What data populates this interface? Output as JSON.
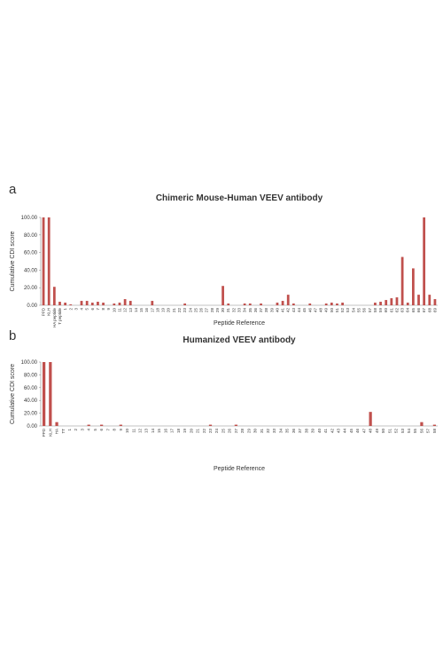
{
  "chart_data": [
    {
      "type": "bar",
      "panel_label": "a",
      "title": "Chimeric Mouse-Human  VEEV antibody",
      "x_label": "Peptide Reference",
      "y_label": "Cumulative CDI score",
      "color": "#c0504d",
      "ylim": [
        0,
        100
      ],
      "yticks": [
        {
          "value": 0,
          "label": "0.00"
        },
        {
          "value": 20,
          "label": "20.00"
        },
        {
          "value": 40,
          "label": "40.00"
        },
        {
          "value": 60,
          "label": "60.00"
        },
        {
          "value": 80,
          "label": "80.00"
        },
        {
          "value": 100,
          "label": "100.00"
        }
      ],
      "categories": [
        "PPD",
        "KLH",
        "HA peptide",
        "T peptide",
        "1",
        "2",
        "3",
        "4",
        "5",
        "6",
        "7",
        "8",
        "9",
        "10",
        "11",
        "12",
        "13",
        "14",
        "15",
        "16",
        "17",
        "18",
        "19",
        "20",
        "21",
        "22",
        "23",
        "24",
        "25",
        "26",
        "27",
        "28",
        "29",
        "30",
        "31",
        "32",
        "33",
        "34",
        "35",
        "36",
        "37",
        "38",
        "39",
        "40",
        "41",
        "42",
        "43",
        "44",
        "45",
        "46",
        "47",
        "48",
        "49",
        "50",
        "51",
        "52",
        "53",
        "54",
        "55",
        "56",
        "57",
        "58",
        "59",
        "60",
        "61",
        "62",
        "63",
        "64",
        "65",
        "66",
        "67",
        "68",
        "69"
      ],
      "values": [
        100,
        100,
        21,
        4,
        3,
        1,
        0,
        5,
        5,
        3,
        4,
        3,
        0,
        2,
        3,
        7,
        5,
        0,
        0,
        0,
        5,
        0,
        0,
        0,
        0,
        0,
        2,
        0,
        0,
        0,
        0,
        0,
        0,
        22,
        2,
        0,
        0,
        2,
        2,
        0,
        2,
        0,
        0,
        3,
        5,
        12,
        2,
        0,
        0,
        2,
        0,
        0,
        2,
        3,
        2,
        3,
        0,
        0,
        0,
        0,
        0,
        3,
        4,
        6,
        8,
        9,
        55,
        3,
        42,
        12,
        100,
        12,
        7
      ]
    },
    {
      "type": "bar",
      "panel_label": "b",
      "title": "Humanized  VEEV antibody",
      "x_label": "Peptide Reference",
      "y_label": "Cumulative CDI score",
      "color": "#c0504d",
      "ylim": [
        0,
        100
      ],
      "yticks": [
        {
          "value": 0,
          "label": "0.00"
        },
        {
          "value": 20,
          "label": "20.00"
        },
        {
          "value": 40,
          "label": "40.00"
        },
        {
          "value": 60,
          "label": "60.00"
        },
        {
          "value": 80,
          "label": "80.00"
        },
        {
          "value": 100,
          "label": "100.00"
        }
      ],
      "categories": [
        "PPD",
        "KLH",
        "HA",
        "TT",
        "1",
        "2",
        "3",
        "4",
        "5",
        "6",
        "7",
        "8",
        "9",
        "10",
        "11",
        "12",
        "13",
        "14",
        "15",
        "16",
        "17",
        "18",
        "19",
        "20",
        "21",
        "22",
        "23",
        "24",
        "25",
        "26",
        "27",
        "28",
        "29",
        "30",
        "31",
        "32",
        "33",
        "34",
        "35",
        "36",
        "37",
        "38",
        "39",
        "40",
        "41",
        "42",
        "43",
        "44",
        "45",
        "46",
        "47",
        "48",
        "49",
        "50",
        "51",
        "52",
        "53",
        "54",
        "55",
        "56",
        "57",
        "58"
      ],
      "values": [
        100,
        100,
        6,
        0,
        0,
        0,
        0,
        2,
        0,
        2,
        0,
        0,
        2,
        0,
        0,
        0,
        0,
        0,
        0,
        0,
        0,
        0,
        0,
        0,
        0,
        0,
        2,
        0,
        0,
        0,
        2,
        0,
        0,
        0,
        0,
        0,
        0,
        0,
        0,
        0,
        0,
        0,
        0,
        0,
        0,
        0,
        0,
        0,
        0,
        0,
        0,
        22,
        0,
        0,
        0,
        0,
        0,
        0,
        0,
        6,
        0,
        2
      ]
    }
  ]
}
